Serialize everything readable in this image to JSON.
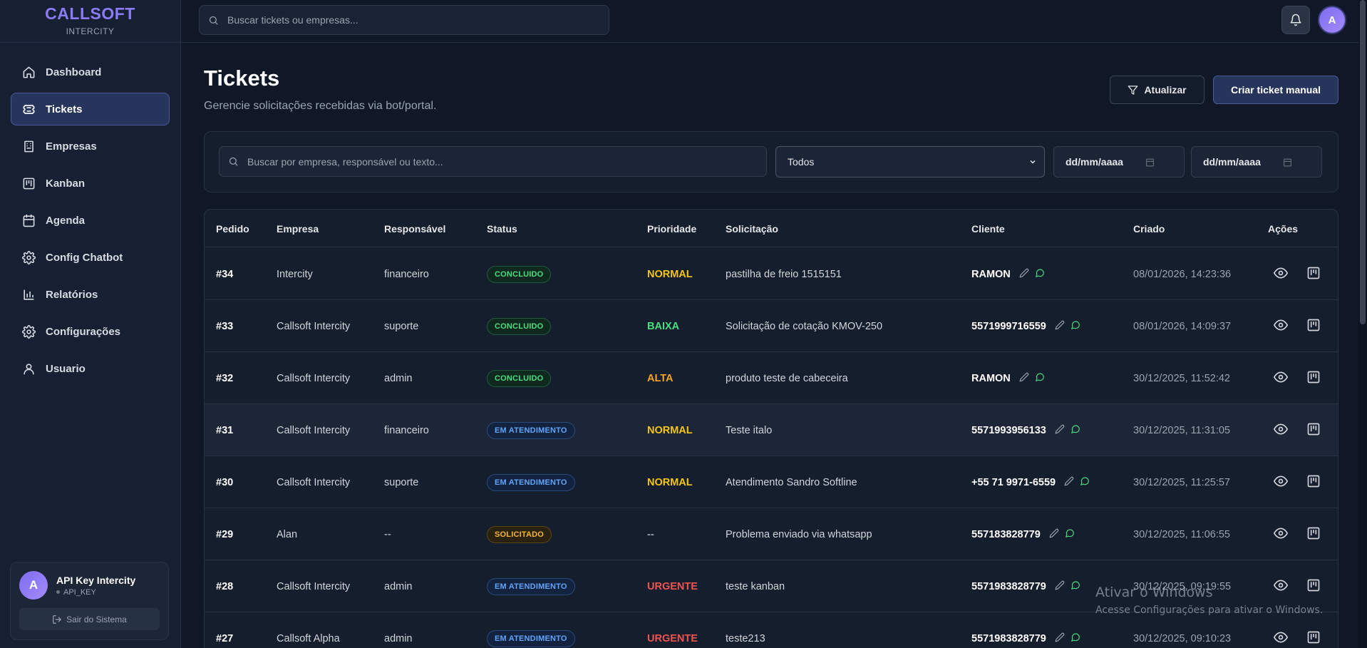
{
  "brand": {
    "name": "CALLSOFT",
    "subtitle": "INTERCITY"
  },
  "sidebar": {
    "items": [
      {
        "label": "Dashboard",
        "icon": "home-icon",
        "active": false
      },
      {
        "label": "Tickets",
        "icon": "ticket-icon",
        "active": true
      },
      {
        "label": "Empresas",
        "icon": "building-icon",
        "active": false
      },
      {
        "label": "Kanban",
        "icon": "kanban-icon",
        "active": false
      },
      {
        "label": "Agenda",
        "icon": "calendar-icon",
        "active": false
      },
      {
        "label": "Config Chatbot",
        "icon": "gear-icon",
        "active": false
      },
      {
        "label": "Relatórios",
        "icon": "bar-chart-icon",
        "active": false
      },
      {
        "label": "Configurações",
        "icon": "gear-icon",
        "active": false
      },
      {
        "label": "Usuario",
        "icon": "user-icon",
        "active": false
      }
    ],
    "user": {
      "initial": "A",
      "name": "API Key Intercity",
      "role": "API_KEY",
      "logout_label": "Sair do Sistema"
    }
  },
  "topbar": {
    "search_placeholder": "Buscar tickets ou empresas...",
    "avatar_initial": "A"
  },
  "header": {
    "title": "Tickets",
    "subtitle": "Gerencie solicitações recebidas via bot/portal.",
    "refresh_label": "Atualizar",
    "create_label": "Criar ticket manual"
  },
  "filters": {
    "search_placeholder": "Buscar por empresa, responsável ou texto...",
    "status_selected": "Todos",
    "date_from": "dd/mm/aaaa",
    "date_to": "dd/mm/aaaa"
  },
  "table": {
    "columns": [
      "Pedido",
      "Empresa",
      "Responsável",
      "Status",
      "Prioridade",
      "Solicitação",
      "Cliente",
      "Criado",
      "Ações"
    ],
    "rows": [
      {
        "id": "#34",
        "empresa": "Intercity",
        "responsavel": "financeiro",
        "status": "CONCLUIDO",
        "status_kind": "concluido",
        "prioridade": "NORMAL",
        "prio_kind": "normal",
        "solicitacao": "pastilha de freio 1515151",
        "cliente": "RAMON",
        "criado": "08/01/2026, 14:23:36",
        "highlight": false
      },
      {
        "id": "#33",
        "empresa": "Callsoft Intercity",
        "responsavel": "suporte",
        "status": "CONCLUIDO",
        "status_kind": "concluido",
        "prioridade": "BAIXA",
        "prio_kind": "baixa",
        "solicitacao": "Solicitação de cotação KMOV-250",
        "cliente": "5571999716559",
        "criado": "08/01/2026, 14:09:37",
        "highlight": false
      },
      {
        "id": "#32",
        "empresa": "Callsoft Intercity",
        "responsavel": "admin",
        "status": "CONCLUIDO",
        "status_kind": "concluido",
        "prioridade": "ALTA",
        "prio_kind": "alta",
        "solicitacao": "produto teste de cabeceira",
        "cliente": "RAMON",
        "criado": "30/12/2025, 11:52:42",
        "highlight": false
      },
      {
        "id": "#31",
        "empresa": "Callsoft Intercity",
        "responsavel": "financeiro",
        "status": "EM ATENDIMENTO",
        "status_kind": "atendimento",
        "prioridade": "NORMAL",
        "prio_kind": "normal",
        "solicitacao": "Teste italo",
        "cliente": "5571993956133",
        "criado": "30/12/2025, 11:31:05",
        "highlight": true
      },
      {
        "id": "#30",
        "empresa": "Callsoft Intercity",
        "responsavel": "suporte",
        "status": "EM ATENDIMENTO",
        "status_kind": "atendimento",
        "prioridade": "NORMAL",
        "prio_kind": "normal",
        "solicitacao": "Atendimento Sandro Softline",
        "cliente": "+55 71 9971-6559",
        "criado": "30/12/2025, 11:25:57",
        "highlight": false
      },
      {
        "id": "#29",
        "empresa": "Alan",
        "responsavel": "--",
        "status": "SOLICITADO",
        "status_kind": "solicitado",
        "prioridade": "--",
        "prio_kind": "none",
        "solicitacao": "Problema enviado via whatsapp",
        "cliente": "557183828779",
        "criado": "30/12/2025, 11:06:55",
        "highlight": false
      },
      {
        "id": "#28",
        "empresa": "Callsoft Intercity",
        "responsavel": "admin",
        "status": "EM ATENDIMENTO",
        "status_kind": "atendimento",
        "prioridade": "URGENTE",
        "prio_kind": "urgente",
        "solicitacao": "teste kanban",
        "cliente": "5571983828779",
        "criado": "30/12/2025, 09:19:55",
        "highlight": false
      },
      {
        "id": "#27",
        "empresa": "Callsoft Alpha",
        "responsavel": "admin",
        "status": "EM ATENDIMENTO",
        "status_kind": "atendimento",
        "prioridade": "URGENTE",
        "prio_kind": "urgente",
        "solicitacao": "teste213",
        "cliente": "5571983828779",
        "criado": "30/12/2025, 09:10:23",
        "highlight": false
      }
    ]
  },
  "watermark": {
    "title": "Ativar o Windows",
    "subtitle": "Acesse Configurações para ativar o Windows."
  },
  "colors": {
    "accent": "#8b7cf6",
    "background": "#101827",
    "sidebar": "#162032",
    "concluido": "#4ade80",
    "atendimento": "#60a5fa",
    "solicitado": "#f5b52e",
    "urgente": "#ef5350"
  }
}
